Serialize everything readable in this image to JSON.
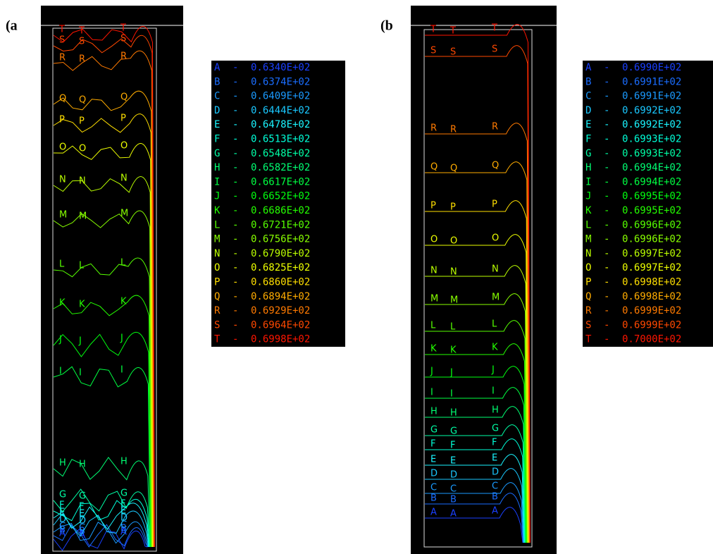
{
  "panels": [
    {
      "label": "(a",
      "dash": "-",
      "legend": [
        {
          "letter": "A",
          "value": "0.6340E+02"
        },
        {
          "letter": "B",
          "value": "0.6374E+02"
        },
        {
          "letter": "C",
          "value": "0.6409E+02"
        },
        {
          "letter": "D",
          "value": "0.6444E+02"
        },
        {
          "letter": "E",
          "value": "0.6478E+02"
        },
        {
          "letter": "F",
          "value": "0.6513E+02"
        },
        {
          "letter": "G",
          "value": "0.6548E+02"
        },
        {
          "letter": "H",
          "value": "0.6582E+02"
        },
        {
          "letter": "I",
          "value": "0.6617E+02"
        },
        {
          "letter": "J",
          "value": "0.6652E+02"
        },
        {
          "letter": "K",
          "value": "0.6686E+02"
        },
        {
          "letter": "L",
          "value": "0.6721E+02"
        },
        {
          "letter": "M",
          "value": "0.6756E+02"
        },
        {
          "letter": "N",
          "value": "0.6790E+02"
        },
        {
          "letter": "O",
          "value": "0.6825E+02"
        },
        {
          "letter": "P",
          "value": "0.6860E+02"
        },
        {
          "letter": "Q",
          "value": "0.6894E+02"
        },
        {
          "letter": "R",
          "value": "0.6929E+02"
        },
        {
          "letter": "S",
          "value": "0.6964E+02"
        },
        {
          "letter": "T",
          "value": "0.6998E+02"
        }
      ]
    },
    {
      "label": "(b",
      "dash": "-",
      "legend": [
        {
          "letter": "A",
          "value": "0.6990E+02"
        },
        {
          "letter": "B",
          "value": "0.6991E+02"
        },
        {
          "letter": "C",
          "value": "0.6991E+02"
        },
        {
          "letter": "D",
          "value": "0.6992E+02"
        },
        {
          "letter": "E",
          "value": "0.6992E+02"
        },
        {
          "letter": "F",
          "value": "0.6993E+02"
        },
        {
          "letter": "G",
          "value": "0.6993E+02"
        },
        {
          "letter": "H",
          "value": "0.6994E+02"
        },
        {
          "letter": "I",
          "value": "0.6994E+02"
        },
        {
          "letter": "J",
          "value": "0.6995E+02"
        },
        {
          "letter": "K",
          "value": "0.6995E+02"
        },
        {
          "letter": "L",
          "value": "0.6996E+02"
        },
        {
          "letter": "M",
          "value": "0.6996E+02"
        },
        {
          "letter": "N",
          "value": "0.6997E+02"
        },
        {
          "letter": "O",
          "value": "0.6997E+02"
        },
        {
          "letter": "P",
          "value": "0.6998E+02"
        },
        {
          "letter": "Q",
          "value": "0.6998E+02"
        },
        {
          "letter": "R",
          "value": "0.6999E+02"
        },
        {
          "letter": "S",
          "value": "0.6999E+02"
        },
        {
          "letter": "T",
          "value": "0.7000E+02"
        }
      ]
    }
  ]
}
